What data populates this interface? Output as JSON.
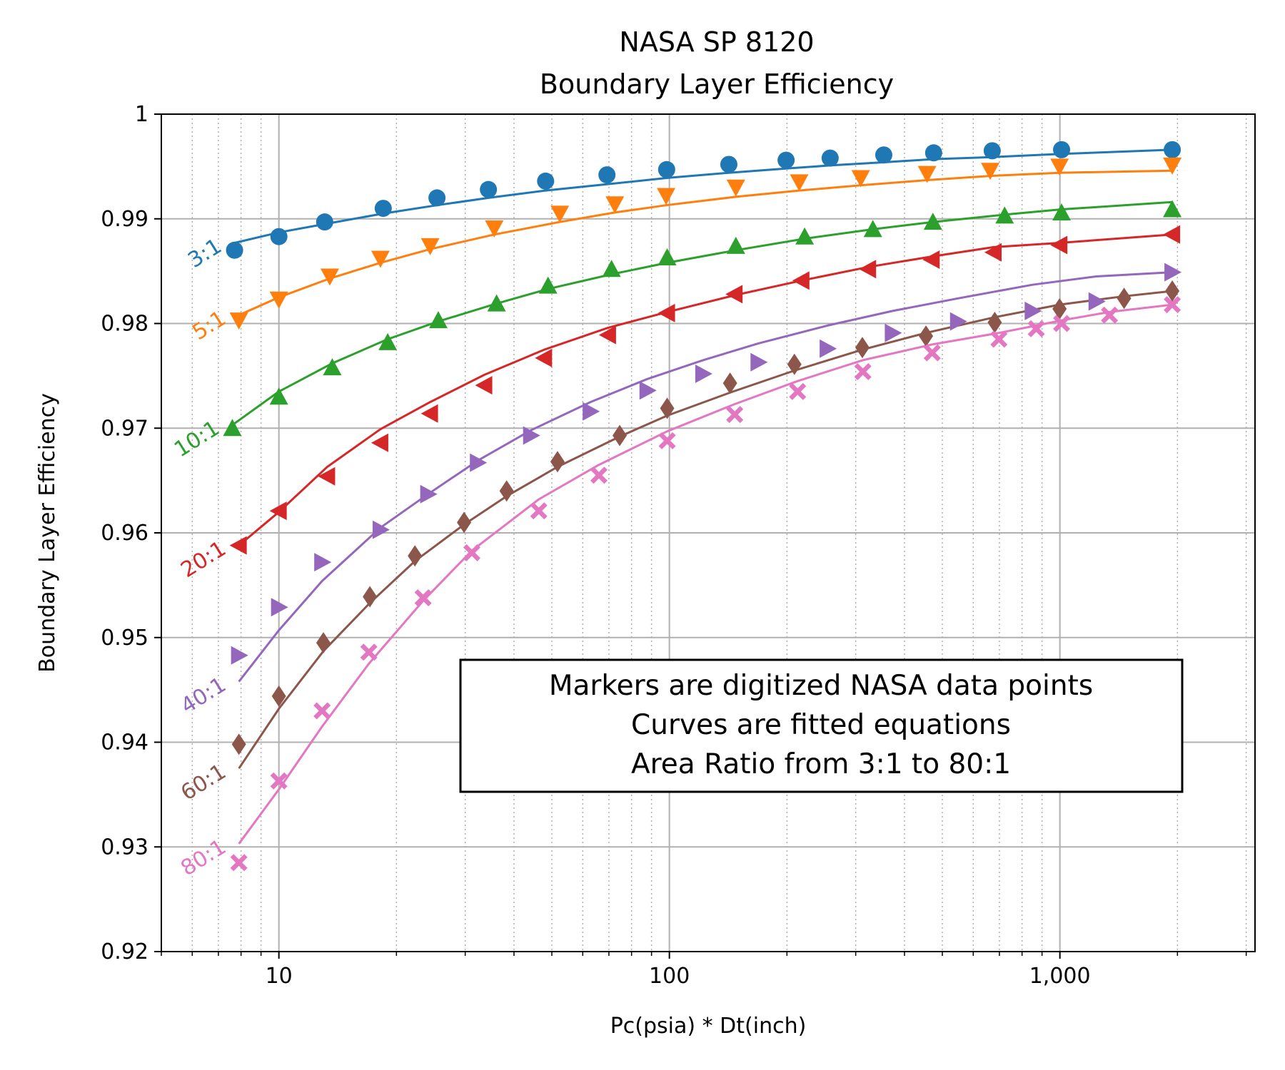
{
  "chart_data": {
    "type": "line",
    "title": [
      "NASA SP 8120",
      "Boundary Layer Efficiency"
    ],
    "xlabel": "Pc(psia) * Dt(inch)",
    "ylabel": "Boundary Layer Efficiency",
    "x_scale": "log",
    "xlim": [
      5,
      3160
    ],
    "ylim": [
      0.92,
      1.0
    ],
    "x_ticks": [
      {
        "value": 10,
        "label": "10"
      },
      {
        "value": 100,
        "label": "100"
      },
      {
        "value": 1000,
        "label": "1,000"
      }
    ],
    "y_ticks": [
      {
        "value": 0.92,
        "label": "0.92"
      },
      {
        "value": 0.93,
        "label": "0.93"
      },
      {
        "value": 0.94,
        "label": "0.94"
      },
      {
        "value": 0.95,
        "label": "0.95"
      },
      {
        "value": 0.96,
        "label": "0.96"
      },
      {
        "value": 0.97,
        "label": "0.97"
      },
      {
        "value": 0.98,
        "label": "0.98"
      },
      {
        "value": 0.99,
        "label": "0.99"
      },
      {
        "value": 1.0,
        "label": "1"
      }
    ],
    "grid": {
      "major": true,
      "minor_x": true
    },
    "annotation": [
      "Markers are digitized NASA data points",
      "Curves are fitted equations",
      "Area Ratio from 3:1 to 80:1"
    ],
    "series": [
      {
        "name": "3:1",
        "color": "#1f77b4",
        "marker": "circle",
        "points": [
          [
            7.7,
            0.987
          ],
          [
            10,
            0.9883
          ],
          [
            13.1,
            0.9897
          ],
          [
            18.5,
            0.991
          ],
          [
            25.4,
            0.992
          ],
          [
            34.4,
            0.9928
          ],
          [
            48.2,
            0.9936
          ],
          [
            69.2,
            0.9942
          ],
          [
            98.4,
            0.9947
          ],
          [
            142,
            0.9952
          ],
          [
            199,
            0.9956
          ],
          [
            258,
            0.9958
          ],
          [
            354,
            0.9961
          ],
          [
            475,
            0.9963
          ],
          [
            671,
            0.9965
          ],
          [
            1010,
            0.9966
          ],
          [
            1940,
            0.9966
          ]
        ],
        "curve": [
          [
            7.7,
            0.9877
          ],
          [
            10,
            0.9887
          ],
          [
            13.1,
            0.9895
          ],
          [
            18.5,
            0.9905
          ],
          [
            25.4,
            0.9913
          ],
          [
            34.4,
            0.992
          ],
          [
            48.2,
            0.9927
          ],
          [
            69.2,
            0.9933
          ],
          [
            98.4,
            0.9939
          ],
          [
            142,
            0.9944
          ],
          [
            199,
            0.9948
          ],
          [
            258,
            0.9951
          ],
          [
            354,
            0.9954
          ],
          [
            475,
            0.9957
          ],
          [
            671,
            0.9959
          ],
          [
            1010,
            0.9962
          ],
          [
            1940,
            0.9966
          ]
        ]
      },
      {
        "name": "5:1",
        "color": "#ff7f0e",
        "marker": "triangle-down",
        "points": [
          [
            7.9,
            0.9803
          ],
          [
            10,
            0.9823
          ],
          [
            13.5,
            0.9845
          ],
          [
            18.2,
            0.9862
          ],
          [
            24.4,
            0.9874
          ],
          [
            35.6,
            0.9891
          ],
          [
            52.4,
            0.9905
          ],
          [
            72.5,
            0.9914
          ],
          [
            98.1,
            0.9922
          ],
          [
            148,
            0.993
          ],
          [
            215,
            0.9935
          ],
          [
            309,
            0.9939
          ],
          [
            457,
            0.9943
          ],
          [
            663,
            0.9946
          ],
          [
            998,
            0.995
          ],
          [
            1940,
            0.9951
          ]
        ],
        "curve": [
          [
            7.9,
            0.9808
          ],
          [
            10,
            0.9825
          ],
          [
            13.5,
            0.9843
          ],
          [
            18.2,
            0.9858
          ],
          [
            24.4,
            0.9871
          ],
          [
            35.6,
            0.9885
          ],
          [
            52.4,
            0.9897
          ],
          [
            72.5,
            0.9906
          ],
          [
            98.1,
            0.9913
          ],
          [
            148,
            0.9921
          ],
          [
            215,
            0.9927
          ],
          [
            309,
            0.9932
          ],
          [
            457,
            0.9937
          ],
          [
            663,
            0.9941
          ],
          [
            998,
            0.9944
          ],
          [
            1940,
            0.9946
          ]
        ]
      },
      {
        "name": "10:1",
        "color": "#2ca02c",
        "marker": "triangle-up",
        "points": [
          [
            7.6,
            0.97
          ],
          [
            10,
            0.973
          ],
          [
            13.7,
            0.9758
          ],
          [
            19,
            0.9782
          ],
          [
            25.6,
            0.9803
          ],
          [
            36.1,
            0.9819
          ],
          [
            48.9,
            0.9836
          ],
          [
            71.1,
            0.9852
          ],
          [
            98.7,
            0.9863
          ],
          [
            148,
            0.9874
          ],
          [
            222,
            0.9883
          ],
          [
            332,
            0.989
          ],
          [
            473,
            0.9897
          ],
          [
            722,
            0.9903
          ],
          [
            1010,
            0.9906
          ],
          [
            1940,
            0.9909
          ]
        ],
        "curve": [
          [
            7.6,
            0.9703
          ],
          [
            10,
            0.9735
          ],
          [
            13.7,
            0.9762
          ],
          [
            19,
            0.9785
          ],
          [
            25.6,
            0.9802
          ],
          [
            36.1,
            0.9819
          ],
          [
            48.9,
            0.9833
          ],
          [
            71.1,
            0.9847
          ],
          [
            98.7,
            0.9858
          ],
          [
            148,
            0.987
          ],
          [
            222,
            0.9881
          ],
          [
            332,
            0.989
          ],
          [
            473,
            0.9897
          ],
          [
            722,
            0.9904
          ],
          [
            1010,
            0.9909
          ],
          [
            1940,
            0.9916
          ]
        ]
      },
      {
        "name": "20:1",
        "color": "#d62728",
        "marker": "triangle-left",
        "points": [
          [
            7.9,
            0.9588
          ],
          [
            10,
            0.9621
          ],
          [
            13.3,
            0.9654
          ],
          [
            18.2,
            0.9686
          ],
          [
            24.4,
            0.9714
          ],
          [
            33.6,
            0.9741
          ],
          [
            47.8,
            0.9767
          ],
          [
            69.7,
            0.9789
          ],
          [
            98.7,
            0.981
          ],
          [
            147,
            0.9828
          ],
          [
            218,
            0.9841
          ],
          [
            323,
            0.9852
          ],
          [
            470,
            0.9861
          ],
          [
            677,
            0.9868
          ],
          [
            998,
            0.9875
          ],
          [
            1940,
            0.9885
          ]
        ],
        "curve": [
          [
            7.9,
            0.9588
          ],
          [
            10,
            0.962
          ],
          [
            13.3,
            0.9663
          ],
          [
            18.2,
            0.9699
          ],
          [
            24.4,
            0.9725
          ],
          [
            33.6,
            0.9751
          ],
          [
            47.8,
            0.9775
          ],
          [
            69.7,
            0.9796
          ],
          [
            98.7,
            0.9811
          ],
          [
            147,
            0.9827
          ],
          [
            218,
            0.9841
          ],
          [
            323,
            0.9854
          ],
          [
            470,
            0.9864
          ],
          [
            677,
            0.9873
          ],
          [
            998,
            0.9877
          ],
          [
            1940,
            0.9885
          ]
        ]
      },
      {
        "name": "40:1",
        "color": "#9467bd",
        "marker": "triangle-right",
        "points": [
          [
            7.9,
            0.9483
          ],
          [
            10,
            0.9529
          ],
          [
            12.9,
            0.9572
          ],
          [
            18.2,
            0.9603
          ],
          [
            24.1,
            0.9637
          ],
          [
            32.3,
            0.9667
          ],
          [
            44.2,
            0.9693
          ],
          [
            62.8,
            0.9716
          ],
          [
            87.8,
            0.9736
          ],
          [
            122,
            0.9752
          ],
          [
            169,
            0.9763
          ],
          [
            254,
            0.9776
          ],
          [
            373,
            0.9791
          ],
          [
            548,
            0.9802
          ],
          [
            851,
            0.9812
          ],
          [
            1240,
            0.9821
          ],
          [
            1940,
            0.9849
          ]
        ],
        "curve": [
          [
            7.9,
            0.9458
          ],
          [
            10,
            0.9507
          ],
          [
            12.9,
            0.9554
          ],
          [
            18.2,
            0.9605
          ],
          [
            24.1,
            0.9637
          ],
          [
            32.3,
            0.9669
          ],
          [
            44.2,
            0.9698
          ],
          [
            62.8,
            0.9725
          ],
          [
            87.8,
            0.9747
          ],
          [
            122,
            0.9765
          ],
          [
            169,
            0.9781
          ],
          [
            254,
            0.9798
          ],
          [
            373,
            0.9812
          ],
          [
            548,
            0.9824
          ],
          [
            851,
            0.9837
          ],
          [
            1240,
            0.9845
          ],
          [
            1940,
            0.9849
          ]
        ]
      },
      {
        "name": "60:1",
        "color": "#8c564b",
        "marker": "diamond",
        "points": [
          [
            7.9,
            0.9398
          ],
          [
            10,
            0.9444
          ],
          [
            13,
            0.9495
          ],
          [
            17.1,
            0.9539
          ],
          [
            22.3,
            0.9578
          ],
          [
            29.8,
            0.961
          ],
          [
            38.3,
            0.964
          ],
          [
            51.7,
            0.9668
          ],
          [
            74.6,
            0.9693
          ],
          [
            98.7,
            0.9719
          ],
          [
            143,
            0.9743
          ],
          [
            209,
            0.9761
          ],
          [
            312,
            0.9777
          ],
          [
            454,
            0.9788
          ],
          [
            681,
            0.9801
          ],
          [
            998,
            0.9814
          ],
          [
            1460,
            0.9824
          ],
          [
            1940,
            0.9831
          ]
        ],
        "curve": [
          [
            7.9,
            0.9375
          ],
          [
            10,
            0.9432
          ],
          [
            13,
            0.9487
          ],
          [
            17.1,
            0.9533
          ],
          [
            22.3,
            0.9573
          ],
          [
            29.8,
            0.9608
          ],
          [
            38.3,
            0.9635
          ],
          [
            51.7,
            0.9663
          ],
          [
            74.6,
            0.9692
          ],
          [
            98.7,
            0.9712
          ],
          [
            143,
            0.9734
          ],
          [
            209,
            0.9755
          ],
          [
            312,
            0.9775
          ],
          [
            454,
            0.9791
          ],
          [
            681,
            0.9806
          ],
          [
            998,
            0.9818
          ],
          [
            1460,
            0.9826
          ],
          [
            1940,
            0.9831
          ]
        ]
      },
      {
        "name": "80:1",
        "color": "#e377c2",
        "marker": "x",
        "points": [
          [
            7.9,
            0.9285
          ],
          [
            10,
            0.9363
          ],
          [
            12.9,
            0.943
          ],
          [
            17,
            0.9486
          ],
          [
            23.4,
            0.9538
          ],
          [
            31.2,
            0.9581
          ],
          [
            46.3,
            0.9621
          ],
          [
            66,
            0.9655
          ],
          [
            98.7,
            0.9688
          ],
          [
            147,
            0.9713
          ],
          [
            213,
            0.9735
          ],
          [
            313,
            0.9754
          ],
          [
            471,
            0.9772
          ],
          [
            698,
            0.9785
          ],
          [
            870,
            0.9795
          ],
          [
            1010,
            0.98
          ],
          [
            1340,
            0.9808
          ],
          [
            1940,
            0.9818
          ]
        ],
        "curve": [
          [
            7.9,
            0.9303
          ],
          [
            10,
            0.9355
          ],
          [
            12.9,
            0.9415
          ],
          [
            17,
            0.9475
          ],
          [
            23.4,
            0.9535
          ],
          [
            31.2,
            0.9583
          ],
          [
            46.3,
            0.9632
          ],
          [
            66,
            0.9665
          ],
          [
            98.7,
            0.9697
          ],
          [
            147,
            0.9723
          ],
          [
            213,
            0.9745
          ],
          [
            313,
            0.9765
          ],
          [
            471,
            0.978
          ],
          [
            698,
            0.9791
          ],
          [
            870,
            0.9798
          ],
          [
            1010,
            0.9803
          ],
          [
            1340,
            0.9811
          ],
          [
            1940,
            0.9818
          ]
        ]
      }
    ]
  }
}
